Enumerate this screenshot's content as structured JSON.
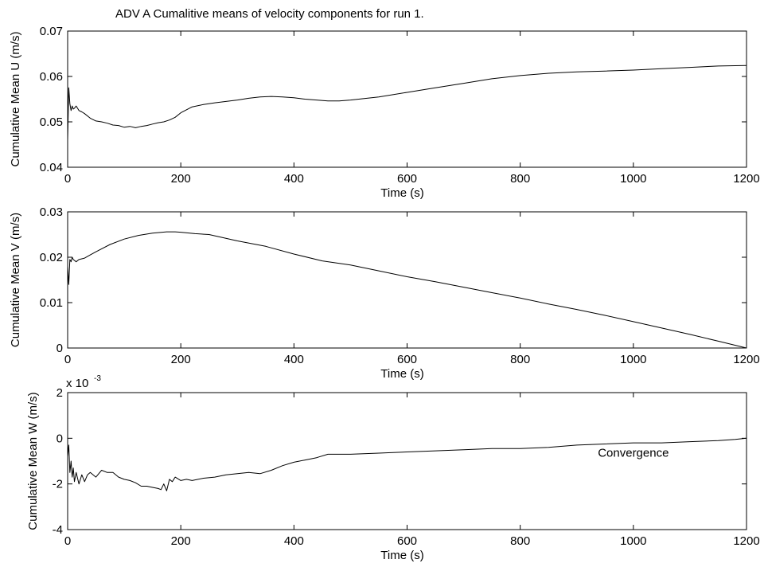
{
  "figure": {
    "title": "ADV A Cumalitive means of velocity components for run 1."
  },
  "chart_data": [
    {
      "type": "line",
      "xlabel": "Time (s)",
      "ylabel": "Cumulative Mean U (m/s)",
      "xlim": [
        0,
        1200
      ],
      "ylim": [
        0.04,
        0.07
      ],
      "xticks": [
        0,
        200,
        400,
        600,
        800,
        1000,
        1200
      ],
      "xtick_labels": [
        "0",
        "200",
        "400",
        "600",
        "800",
        "1000",
        "1200"
      ],
      "yticks": [
        0.04,
        0.05,
        0.06,
        0.07
      ],
      "ytick_labels": [
        "0.04",
        "0.05",
        "0.06",
        "0.07"
      ],
      "grid": false,
      "series": [
        {
          "x": [
            0,
            2,
            4,
            6,
            8,
            10,
            12,
            15,
            20,
            25,
            30,
            40,
            50,
            60,
            70,
            80,
            90,
            100,
            110,
            120,
            130,
            140,
            150,
            160,
            170,
            180,
            190,
            200,
            220,
            240,
            260,
            280,
            300,
            320,
            340,
            360,
            380,
            400,
            420,
            440,
            460,
            480,
            500,
            550,
            600,
            650,
            700,
            750,
            800,
            850,
            900,
            950,
            1000,
            1050,
            1100,
            1150,
            1200
          ],
          "y": [
            0.046,
            0.0575,
            0.054,
            0.0525,
            0.0535,
            0.0528,
            0.053,
            0.0535,
            0.0525,
            0.0522,
            0.0518,
            0.0508,
            0.0502,
            0.05,
            0.0497,
            0.0493,
            0.0492,
            0.0488,
            0.049,
            0.0487,
            0.049,
            0.0492,
            0.0495,
            0.0498,
            0.05,
            0.0504,
            0.051,
            0.052,
            0.0533,
            0.0538,
            0.0542,
            0.0545,
            0.0548,
            0.0552,
            0.0555,
            0.0556,
            0.0555,
            0.0553,
            0.055,
            0.0548,
            0.0546,
            0.0546,
            0.0548,
            0.0555,
            0.0565,
            0.0575,
            0.0585,
            0.0595,
            0.0602,
            0.0607,
            0.061,
            0.0612,
            0.0614,
            0.0617,
            0.062,
            0.0623,
            0.0624
          ]
        }
      ]
    },
    {
      "type": "line",
      "xlabel": "Time (s)",
      "ylabel": "Cumulative Mean V (m/s)",
      "xlim": [
        0,
        1200
      ],
      "ylim": [
        0,
        0.03
      ],
      "xticks": [
        0,
        200,
        400,
        600,
        800,
        1000,
        1200
      ],
      "xtick_labels": [
        "0",
        "200",
        "400",
        "600",
        "800",
        "1000",
        "1200"
      ],
      "yticks": [
        0,
        0.01,
        0.02,
        0.03
      ],
      "ytick_labels": [
        "0",
        "0.01",
        "0.02",
        "0.03"
      ],
      "grid": false,
      "series": [
        {
          "x": [
            0,
            2,
            4,
            6,
            8,
            10,
            15,
            20,
            30,
            40,
            50,
            75,
            100,
            125,
            150,
            175,
            190,
            200,
            225,
            250,
            275,
            300,
            350,
            400,
            450,
            500,
            550,
            600,
            650,
            700,
            750,
            800,
            850,
            900,
            950,
            1000,
            1050,
            1100,
            1150,
            1200
          ],
          "y": [
            0.018,
            0.014,
            0.0195,
            0.019,
            0.02,
            0.0195,
            0.019,
            0.0195,
            0.0198,
            0.0205,
            0.0212,
            0.0228,
            0.024,
            0.0248,
            0.0253,
            0.0256,
            0.0256,
            0.0255,
            0.0252,
            0.025,
            0.0243,
            0.0236,
            0.0224,
            0.0207,
            0.0192,
            0.0183,
            0.017,
            0.0157,
            0.0146,
            0.0134,
            0.0122,
            0.011,
            0.0097,
            0.0085,
            0.0072,
            0.0058,
            0.0044,
            0.003,
            0.0015,
            0
          ]
        }
      ]
    },
    {
      "type": "line",
      "xlabel": "Time (s)",
      "ylabel": "Cumulative Mean W (m/s)",
      "y_multiplier": "x 10",
      "y_multiplier_exp": "-3",
      "xlim": [
        0,
        1200
      ],
      "ylim": [
        -4,
        2
      ],
      "xticks": [
        0,
        200,
        400,
        600,
        800,
        1000,
        1200
      ],
      "xtick_labels": [
        "0",
        "200",
        "400",
        "600",
        "800",
        "1000",
        "1200"
      ],
      "yticks": [
        -4,
        -2,
        0,
        2
      ],
      "ytick_labels": [
        "-4",
        "-2",
        "0",
        "2"
      ],
      "grid": false,
      "annotations": [
        {
          "text": "Convergence",
          "x": 1000,
          "y": -0.8
        }
      ],
      "series": [
        {
          "x": [
            0,
            2,
            4,
            6,
            8,
            10,
            12,
            15,
            20,
            25,
            30,
            35,
            40,
            50,
            60,
            70,
            80,
            90,
            100,
            110,
            120,
            130,
            140,
            150,
            160,
            165,
            170,
            175,
            180,
            185,
            190,
            200,
            210,
            220,
            240,
            260,
            280,
            300,
            320,
            340,
            360,
            380,
            400,
            420,
            440,
            460,
            480,
            500,
            550,
            600,
            650,
            700,
            750,
            800,
            850,
            900,
            950,
            1000,
            1050,
            1100,
            1150,
            1180,
            1200
          ],
          "y": [
            -0.8,
            -0.3,
            -1.5,
            -1.0,
            -1.7,
            -1.3,
            -1.9,
            -1.5,
            -2.0,
            -1.6,
            -1.9,
            -1.6,
            -1.5,
            -1.7,
            -1.4,
            -1.5,
            -1.5,
            -1.7,
            -1.8,
            -1.85,
            -1.95,
            -2.1,
            -2.1,
            -2.15,
            -2.2,
            -2.25,
            -2.0,
            -2.3,
            -1.8,
            -1.9,
            -1.7,
            -1.85,
            -1.8,
            -1.85,
            -1.75,
            -1.7,
            -1.6,
            -1.55,
            -1.5,
            -1.55,
            -1.4,
            -1.2,
            -1.05,
            -0.95,
            -0.85,
            -0.7,
            -0.7,
            -0.7,
            -0.65,
            -0.6,
            -0.55,
            -0.5,
            -0.45,
            -0.45,
            -0.4,
            -0.3,
            -0.25,
            -0.2,
            -0.2,
            -0.15,
            -0.1,
            -0.05,
            0.0
          ]
        }
      ]
    }
  ]
}
